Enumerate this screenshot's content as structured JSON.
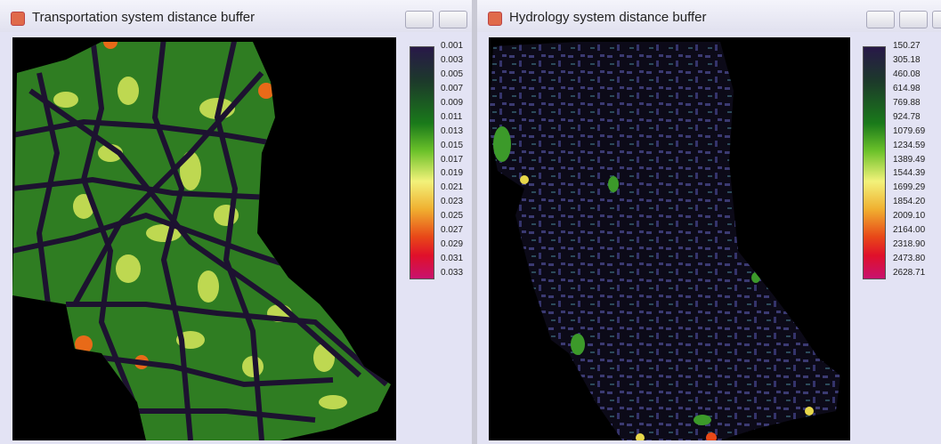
{
  "windows": [
    {
      "title": "Transportation system distance buffer",
      "legend": [
        "0.001",
        "0.003",
        "0.005",
        "0.007",
        "0.009",
        "0.011",
        "0.013",
        "0.015",
        "0.017",
        "0.019",
        "0.021",
        "0.023",
        "0.025",
        "0.027",
        "0.029",
        "0.031",
        "0.033"
      ]
    },
    {
      "title": "Hydrology system distance buffer",
      "legend": [
        "150.27",
        "305.18",
        "460.08",
        "614.98",
        "769.88",
        "924.78",
        "1079.69",
        "1234.59",
        "1389.49",
        "1544.39",
        "1699.29",
        "1854.20",
        "2009.10",
        "2164.00",
        "2318.90",
        "2473.80",
        "2628.71"
      ]
    }
  ]
}
